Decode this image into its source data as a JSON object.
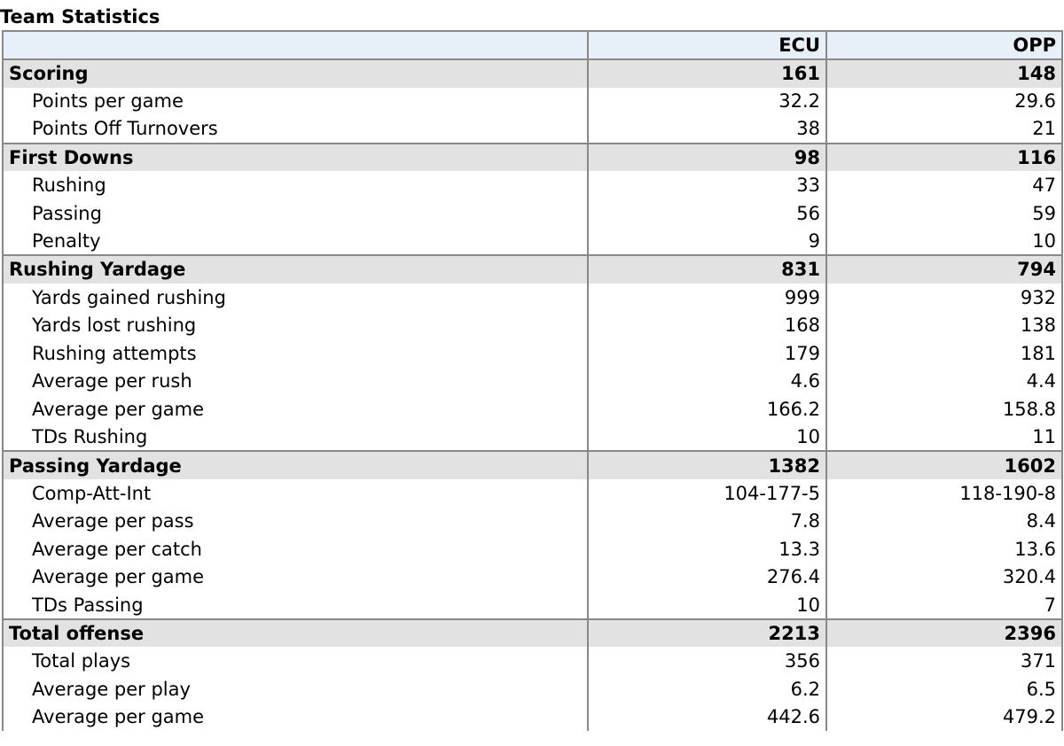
{
  "title": "Team Statistics",
  "columns": {
    "team": "ECU",
    "opponent": "OPP"
  },
  "sections": [
    {
      "label": "Scoring",
      "ecu": "161",
      "opp": "148",
      "rows": [
        {
          "label": "Points per game",
          "ecu": "32.2",
          "opp": "29.6"
        },
        {
          "label": "Points Off Turnovers",
          "ecu": "38",
          "opp": "21"
        }
      ]
    },
    {
      "label": "First Downs",
      "ecu": "98",
      "opp": "116",
      "rows": [
        {
          "label": "Rushing",
          "ecu": "33",
          "opp": "47"
        },
        {
          "label": "Passing",
          "ecu": "56",
          "opp": "59"
        },
        {
          "label": "Penalty",
          "ecu": "9",
          "opp": "10"
        }
      ]
    },
    {
      "label": "Rushing Yardage",
      "ecu": "831",
      "opp": "794",
      "rows": [
        {
          "label": "Yards gained rushing",
          "ecu": "999",
          "opp": "932"
        },
        {
          "label": "Yards lost rushing",
          "ecu": "168",
          "opp": "138"
        },
        {
          "label": "Rushing attempts",
          "ecu": "179",
          "opp": "181"
        },
        {
          "label": "Average per rush",
          "ecu": "4.6",
          "opp": "4.4"
        },
        {
          "label": "Average per game",
          "ecu": "166.2",
          "opp": "158.8"
        },
        {
          "label": "TDs Rushing",
          "ecu": "10",
          "opp": "11"
        }
      ]
    },
    {
      "label": "Passing Yardage",
      "ecu": "1382",
      "opp": "1602",
      "rows": [
        {
          "label": "Comp-Att-Int",
          "ecu": "104-177-5",
          "opp": "118-190-8"
        },
        {
          "label": "Average per pass",
          "ecu": "7.8",
          "opp": "8.4"
        },
        {
          "label": "Average per catch",
          "ecu": "13.3",
          "opp": "13.6"
        },
        {
          "label": "Average per game",
          "ecu": "276.4",
          "opp": "320.4"
        },
        {
          "label": "TDs Passing",
          "ecu": "10",
          "opp": "7"
        }
      ]
    },
    {
      "label": "Total offense",
      "ecu": "2213",
      "opp": "2396",
      "rows": [
        {
          "label": "Total plays",
          "ecu": "356",
          "opp": "371"
        },
        {
          "label": "Average per play",
          "ecu": "6.2",
          "opp": "6.5"
        },
        {
          "label": "Average per game",
          "ecu": "442.6",
          "opp": "479.2"
        }
      ]
    }
  ]
}
